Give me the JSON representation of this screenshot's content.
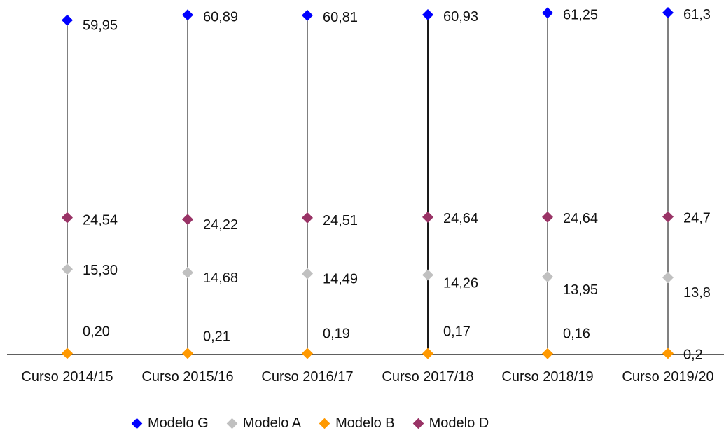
{
  "chart_data": {
    "type": "line",
    "categories": [
      "Curso 2014/15",
      "Curso 2015/16",
      "Curso 2016/17",
      "Curso 2017/18",
      "Curso 2018/19",
      "Curso 2019/20"
    ],
    "series": [
      {
        "name": "Modelo G",
        "color": "#0000ff",
        "values": [
          59.95,
          60.89,
          60.81,
          60.93,
          61.25,
          61.3
        ],
        "labels": [
          "59,95",
          "60,89",
          "60,81",
          "60,93",
          "61,25",
          "61,3"
        ]
      },
      {
        "name": "Modelo A",
        "color": "#c0c0c0",
        "values": [
          15.3,
          14.68,
          14.49,
          14.26,
          13.95,
          13.8
        ],
        "labels": [
          "15,30",
          "14,68",
          "14,49",
          "14,26",
          "13,95",
          "13,8"
        ]
      },
      {
        "name": "Modelo B",
        "color": "#ff9900",
        "values": [
          0.2,
          0.21,
          0.19,
          0.17,
          0.16,
          0.2
        ],
        "labels": [
          "0,20",
          "0,21",
          "0,19",
          "0,17",
          "0,16",
          "0,2"
        ]
      },
      {
        "name": "Modelo D",
        "color": "#993366",
        "values": [
          24.54,
          24.22,
          24.51,
          24.64,
          24.64,
          24.7
        ],
        "labels": [
          "24,54",
          "24,22",
          "24,51",
          "24,64",
          "24,64",
          "24,7"
        ]
      }
    ],
    "title": "",
    "xlabel": "",
    "ylabel": "",
    "grid": false,
    "legend": "bottom",
    "drop_lines": true
  }
}
